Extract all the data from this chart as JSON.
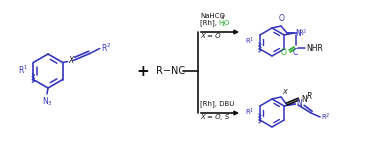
{
  "bg_color": "#ffffff",
  "blue": "#3333bb",
  "black": "#111111",
  "green": "#22aa22",
  "figsize": [
    3.78,
    1.47
  ],
  "dpi": 100,
  "top_cond1": "[Rh], DBU",
  "top_cond2": "X = O, S",
  "bot_cond1": "[Rh], H",
  "bot_cond1b": "2",
  "bot_cond1c": "O",
  "bot_cond2": "NaHCO",
  "bot_cond2b": "3",
  "bot_cond3": "X = O"
}
